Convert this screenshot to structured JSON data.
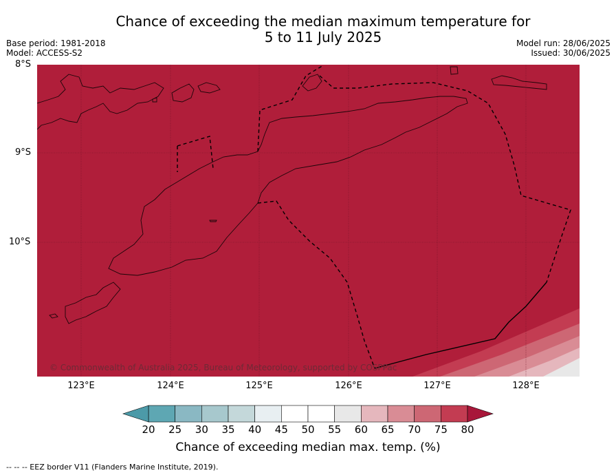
{
  "title": {
    "line1": "Chance of exceeding the median maximum temperature for",
    "line2": "5 to 11 July 2025"
  },
  "meta_left": {
    "base_period": "Base period: 1981-2018",
    "model": "Model: ACCESS-S2"
  },
  "meta_right": {
    "model_run": "Model run: 28/06/2025",
    "issued": "Issued: 30/06/2025"
  },
  "map": {
    "lat_labels": [
      "8°S",
      "9°S",
      "10°S"
    ],
    "lon_labels": [
      "123°E",
      "124°E",
      "125°E",
      "126°E",
      "127°E",
      "128°E"
    ],
    "copyright": "© Commonwealth of Australia 2025, Bureau of Meteorology, supported by COSPPac",
    "colors": {
      "dominant": "#b01e3a",
      "band75": "#c33c52",
      "band70": "#cd6774",
      "band65": "#d98c95",
      "band60": "#e5b7bd",
      "band55": "#e8e8e8"
    }
  },
  "colorbar": {
    "ticks": [
      "20",
      "25",
      "30",
      "35",
      "40",
      "45",
      "50",
      "55",
      "60",
      "65",
      "70",
      "75",
      "80"
    ],
    "colors": [
      "#5ea7b3",
      "#8ab8c3",
      "#a7c8cd",
      "#c4d8da",
      "#e8eff2",
      "#ffffff",
      "#ffffff",
      "#e8e8e8",
      "#e5b7bd",
      "#d98c95",
      "#cd6774",
      "#c33c52"
    ],
    "low_extend_color": "#4c9aa8",
    "high_extend_color": "#a8173a",
    "title": "Chance of exceeding median max. temp. (%)"
  },
  "footer": "--  --  -- EEZ border V11 (Flanders Marine Institute, 2019)."
}
